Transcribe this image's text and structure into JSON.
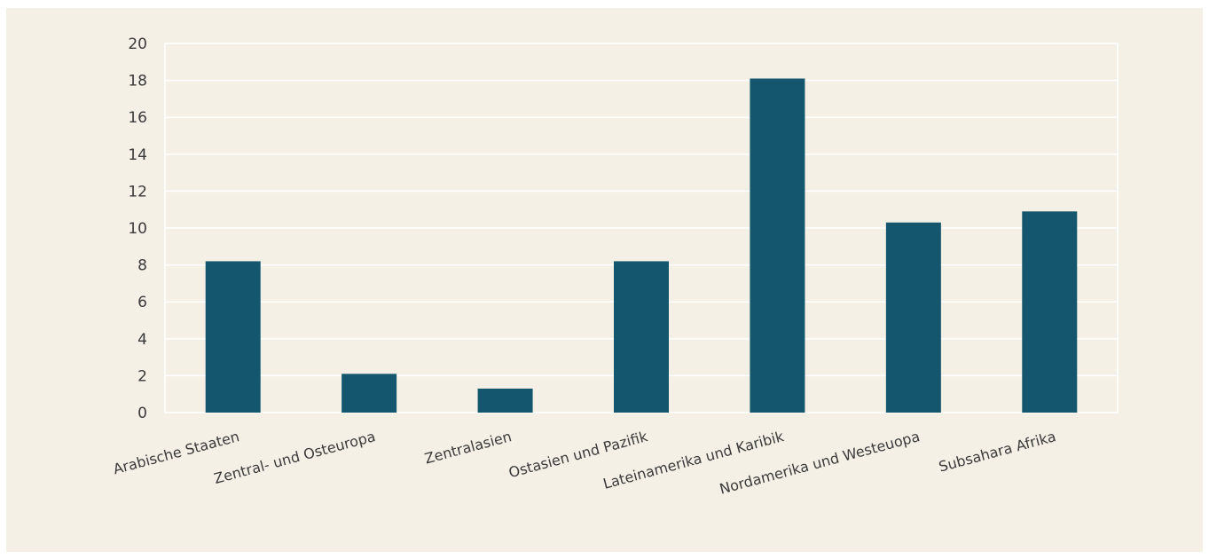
{
  "chart_data": {
    "type": "bar",
    "categories": [
      "Arabische Staaten",
      "Zentral- und Osteuropa",
      "Zentralasien",
      "Ostasien und Pazifik",
      "Lateinamerika und Karibik",
      "Nordamerika und Westeuopa",
      "Subsahara Afrika"
    ],
    "values": [
      8.2,
      2.1,
      1.3,
      8.2,
      18.1,
      10.3,
      10.9
    ],
    "ylim": [
      0,
      20
    ],
    "yticks": [
      0,
      2,
      4,
      6,
      8,
      10,
      12,
      14,
      16,
      18,
      20
    ],
    "grid": true,
    "legend": "none",
    "colors": {
      "bar": "#14566e",
      "background": "#f4f0e5",
      "grid": "#ffffff",
      "text": "#3a3a3a"
    }
  }
}
